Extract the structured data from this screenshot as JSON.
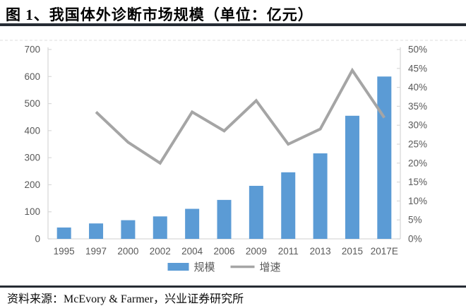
{
  "header": {
    "title": "图 1、我国体外诊断市场规模（单位：亿元）"
  },
  "footer": {
    "source": "资料来源：McEvory & Farmer，兴业证券研究所"
  },
  "chart_data": {
    "type": "bar+line",
    "title": "我国体外诊断市场规模（单位：亿元）",
    "categories": [
      "1995",
      "1997",
      "2000",
      "2002",
      "2004",
      "2006",
      "2009",
      "2011",
      "2013",
      "2015",
      "2017E"
    ],
    "series": [
      {
        "name": "规模",
        "type": "bar",
        "axis": "left",
        "color": "#5B9BD5",
        "values": [
          42,
          57,
          69,
          83,
          111,
          144,
          196,
          246,
          316,
          455,
          600
        ]
      },
      {
        "name": "增速",
        "type": "line",
        "axis": "right",
        "unit": "%",
        "color": "#A5A5A5",
        "values": [
          null,
          33.5,
          25.5,
          20,
          33.5,
          28.5,
          36.5,
          25,
          29,
          44.5,
          32
        ]
      }
    ],
    "left_axis": {
      "min": 0,
      "max": 700,
      "tick_labels": [
        "0",
        "100",
        "200",
        "300",
        "400",
        "500",
        "600",
        "700"
      ]
    },
    "right_axis": {
      "min": 0,
      "max": 50,
      "tick_labels": [
        "0%",
        "5%",
        "10%",
        "15%",
        "20%",
        "25%",
        "30%",
        "35%",
        "40%",
        "45%",
        "50%"
      ]
    },
    "legend": {
      "items": [
        "规模",
        "增速"
      ],
      "position": "bottom"
    },
    "grid": false,
    "styles": {
      "bar_color": "#5B9BD5",
      "line_color": "#A5A5A5",
      "axis_color": "#D9D9D9",
      "label_color": "#595959"
    }
  }
}
